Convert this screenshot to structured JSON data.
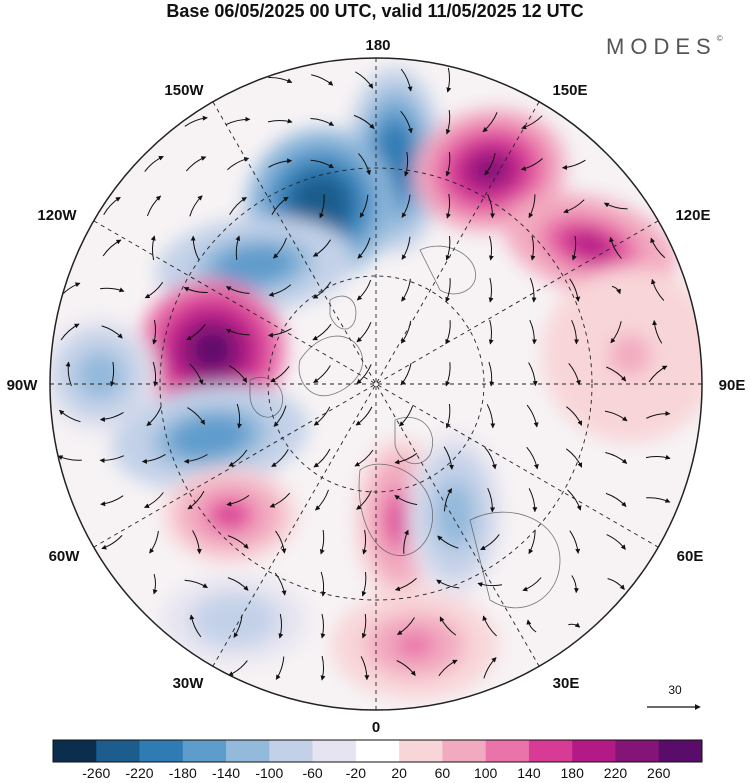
{
  "title": "Base 06/05/2025 00 UTC, valid 11/05/2025 12 UTC",
  "logo": "MODES",
  "logo_mark": "©",
  "longitude_labels": {
    "lon_180": "180",
    "lon_150w": "150W",
    "lon_150e": "150E",
    "lon_120w": "120W",
    "lon_120e": "120E",
    "lon_90w": "90W",
    "lon_90e": "90E",
    "lon_60w": "60W",
    "lon_60e": "60E",
    "lon_30w": "30W",
    "lon_30e": "30E",
    "lon_0": "0"
  },
  "reference_vector": "30",
  "colorbar": {
    "levels": [
      "-260",
      "-220",
      "-180",
      "-140",
      "-100",
      "-60",
      "-20",
      "20",
      "60",
      "100",
      "140",
      "180",
      "220",
      "260"
    ],
    "colors": [
      "#0b2e4e",
      "#1c5d8d",
      "#2f7cb4",
      "#5e9ccc",
      "#93b9db",
      "#c3d1e8",
      "#e6e4f0",
      "#ffffff",
      "#f8d5d8",
      "#f2aac0",
      "#ea73aa",
      "#d83b96",
      "#b41a86",
      "#851478",
      "#5a0c6a"
    ]
  },
  "anomaly_centers": [
    {
      "sign": "negative",
      "level": "-220"
    },
    {
      "sign": "positive",
      "level": "220"
    },
    {
      "sign": "negative",
      "level": "-260"
    },
    {
      "sign": "positive",
      "level": "180"
    },
    {
      "sign": "negative",
      "level": "-180"
    },
    {
      "sign": "positive",
      "level": "260"
    },
    {
      "sign": "negative",
      "level": "-140"
    },
    {
      "sign": "negative",
      "level": "-180"
    },
    {
      "sign": "positive",
      "level": "140"
    },
    {
      "sign": "negative",
      "level": "-140"
    },
    {
      "sign": "positive",
      "level": "140"
    },
    {
      "sign": "negative",
      "level": "-100"
    },
    {
      "sign": "positive",
      "level": "100"
    },
    {
      "sign": "positive",
      "level": "60"
    }
  ]
}
